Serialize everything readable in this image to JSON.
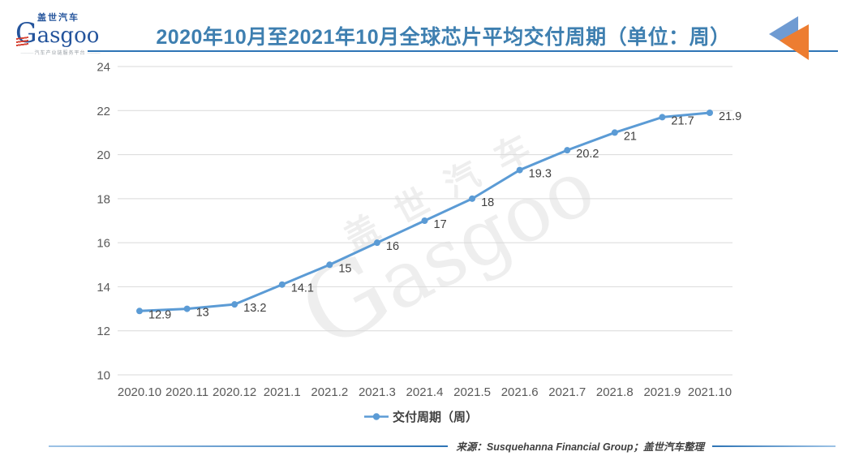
{
  "header": {
    "logo": {
      "cn": "盖世汽车",
      "en": "Gasgoo",
      "tagline": "汽车产业链服务平台"
    },
    "title": "2020年10月至2021年10月全球芯片平均交付周期（单位：周）"
  },
  "watermark": {
    "cn": "盖世汽车",
    "en": "Gasgoo"
  },
  "chart_data": {
    "type": "line",
    "title": "2020年10月至2021年10月全球芯片平均交付周期（单位：周）",
    "categories": [
      "2020.10",
      "2020.11",
      "2020.12",
      "2021.1",
      "2021.2",
      "2021.3",
      "2021.4",
      "2021.5",
      "2021.6",
      "2021.7",
      "2021.8",
      "2021.9",
      "2021.10"
    ],
    "series": [
      {
        "name": "交付周期（周）",
        "values": [
          12.9,
          13,
          13.2,
          14.1,
          15,
          16,
          17,
          18,
          19.3,
          20.2,
          21,
          21.7,
          21.9
        ]
      }
    ],
    "ylim": [
      10,
      24
    ],
    "yticks": [
      24,
      22,
      20,
      18,
      16,
      14,
      12,
      10
    ],
    "grid": true,
    "legend_position": "bottom",
    "xlabel": "",
    "ylabel": "",
    "line_color": "#5b9bd5",
    "marker_color": "#5b9bd5",
    "data_label_color": "#404040",
    "axis_label_color": "#595959",
    "grid_color": "#d9d9d9"
  },
  "legend": {
    "label": "交付周期（周）"
  },
  "footer": {
    "source": "来源：Susquehanna Financial Group；盖世汽车整理"
  },
  "colors": {
    "title": "#3e7fb0",
    "header_line": "#2e74b5",
    "arrow_blue": "#6f9bd2",
    "arrow_orange": "#ed7d31",
    "logo_blue": "#24549c",
    "logo_red": "#d43a2a"
  }
}
